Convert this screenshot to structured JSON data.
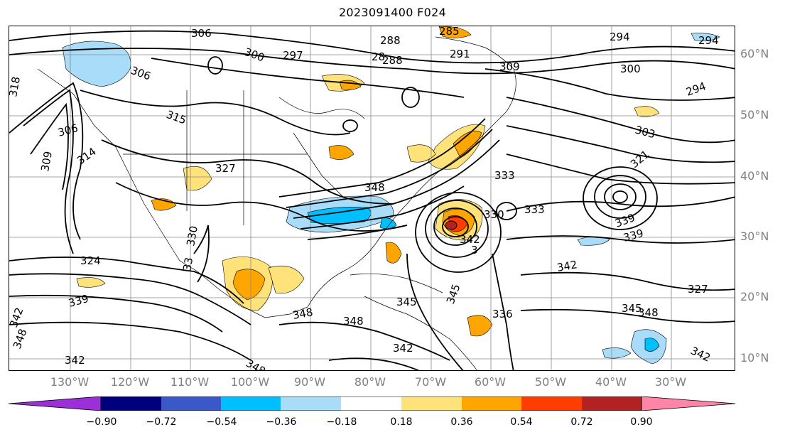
{
  "title": "2023091400 F024",
  "lat_labels": [
    {
      "text": "60°N"
    },
    {
      "text": "50°N"
    },
    {
      "text": "40°N"
    },
    {
      "text": "30°N"
    },
    {
      "text": "20°N"
    },
    {
      "text": "10°N"
    }
  ],
  "lon_labels": [
    {
      "text": "130°W"
    },
    {
      "text": "120°W"
    },
    {
      "text": "110°W"
    },
    {
      "text": "100°W"
    },
    {
      "text": "90°W"
    },
    {
      "text": "80°W"
    },
    {
      "text": "70°W"
    },
    {
      "text": "60°W"
    },
    {
      "text": "50°W"
    },
    {
      "text": "40°W"
    },
    {
      "text": "30°W"
    }
  ],
  "colorbar": {
    "colors": [
      "#9b30d9",
      "#00007f",
      "#3a58c8",
      "#00bfff",
      "#a8dcf8",
      "#ffffff",
      "#ffe27a",
      "#ffa500",
      "#ff3d00",
      "#b22222",
      "#ff85a8"
    ],
    "tick_labels": [
      "−0.90",
      "−0.72",
      "−0.54",
      "−0.36",
      "−0.18",
      "0.18",
      "0.36",
      "0.54",
      "0.72",
      "0.90"
    ]
  },
  "contour_labels": [
    "306",
    "306",
    "300",
    "297",
    "288",
    "28",
    "288",
    "285",
    "291",
    "294",
    "294",
    "309",
    "300",
    "294",
    "303",
    "306",
    "315",
    "327",
    "321",
    "314",
    "309",
    "333",
    "330",
    "333",
    "339",
    "339",
    "330",
    "324",
    "339",
    "348",
    "345",
    "348",
    "342",
    "348",
    "342",
    "327",
    "342",
    "345",
    "348",
    "336",
    "345",
    "342",
    "348",
    "342",
    "348",
    "33",
    "318",
    "342",
    "3"
  ]
}
